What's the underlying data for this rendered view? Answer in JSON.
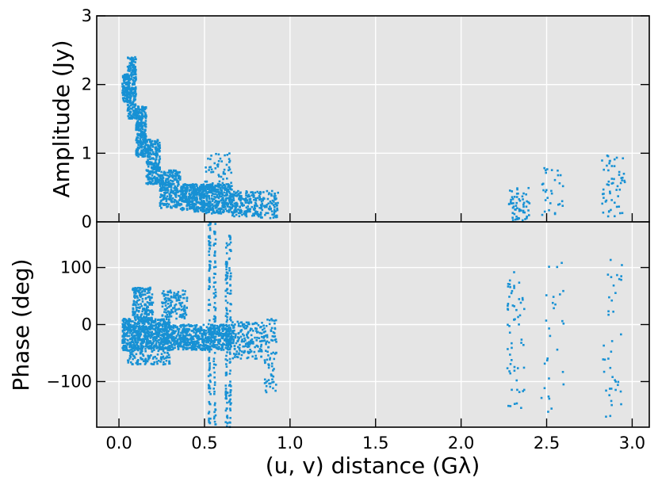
{
  "chart_data": [
    {
      "type": "scatter",
      "panel": "top",
      "ylabel": "Amplitude (Jy)",
      "xlim": [
        -0.13,
        3.1
      ],
      "ylim": [
        0,
        3
      ],
      "yticks": [
        "0",
        "1",
        "2",
        "3"
      ],
      "grid": true,
      "background": "#e5e5e5",
      "marker_color": "#1791d4",
      "series": [
        {
          "clusters": [
            {
              "x": [
                0.02,
                0.06
              ],
              "y": [
                1.75,
                2.15
              ],
              "n": 140
            },
            {
              "x": [
                0.05,
                0.1
              ],
              "y": [
                1.5,
                2.4
              ],
              "n": 220
            },
            {
              "x": [
                0.1,
                0.16
              ],
              "y": [
                0.95,
                1.7
              ],
              "n": 260
            },
            {
              "x": [
                0.16,
                0.24
              ],
              "y": [
                0.55,
                1.2
              ],
              "n": 260
            },
            {
              "x": [
                0.24,
                0.36
              ],
              "y": [
                0.2,
                0.75
              ],
              "n": 260
            },
            {
              "x": [
                0.36,
                0.5
              ],
              "y": [
                0.15,
                0.55
              ],
              "n": 320
            },
            {
              "x": [
                0.5,
                0.66
              ],
              "y": [
                0.12,
                0.55
              ],
              "n": 320
            },
            {
              "x": [
                0.5,
                0.66
              ],
              "y": [
                0.4,
                1.0
              ],
              "n": 60
            },
            {
              "x": [
                0.66,
                0.8
              ],
              "y": [
                0.08,
                0.45
              ],
              "n": 160
            },
            {
              "x": [
                0.8,
                0.93
              ],
              "y": [
                0.05,
                0.45
              ],
              "n": 110
            },
            {
              "x": [
                2.28,
                2.4
              ],
              "y": [
                0.02,
                0.5
              ],
              "n": 60
            },
            {
              "x": [
                2.47,
                2.6
              ],
              "y": [
                0.1,
                0.85
              ],
              "n": 30
            },
            {
              "x": [
                2.82,
                2.96
              ],
              "y": [
                0.05,
                0.98
              ],
              "n": 55
            }
          ]
        }
      ]
    },
    {
      "type": "scatter",
      "panel": "bottom",
      "xlabel": "(u, v) distance (Gλ)",
      "ylabel": "Phase (deg)",
      "xlim": [
        -0.13,
        3.1
      ],
      "ylim": [
        -180,
        180
      ],
      "xticks": [
        "0.0",
        "0.5",
        "1.0",
        "1.5",
        "2.0",
        "2.5",
        "3.0"
      ],
      "yticks": [
        "−100",
        "0",
        "100"
      ],
      "grid": true,
      "background": "#e5e5e5",
      "marker_color": "#1791d4",
      "series": [
        {
          "clusters": [
            {
              "x": [
                0.02,
                0.3
              ],
              "y": [
                -45,
                10
              ],
              "n": 700
            },
            {
              "x": [
                0.08,
                0.2
              ],
              "y": [
                10,
                65
              ],
              "n": 180
            },
            {
              "x": [
                0.25,
                0.4
              ],
              "y": [
                10,
                60
              ],
              "n": 130
            },
            {
              "x": [
                0.3,
                0.66
              ],
              "y": [
                -45,
                0
              ],
              "n": 600
            },
            {
              "x": [
                0.66,
                0.85
              ],
              "y": [
                -60,
                5
              ],
              "n": 180
            },
            {
              "x": [
                0.85,
                0.92
              ],
              "y": [
                -120,
                10
              ],
              "n": 80
            },
            {
              "x": [
                0.05,
                0.3
              ],
              "y": [
                -70,
                -45
              ],
              "n": 100
            },
            {
              "x": [
                2.27,
                2.37
              ],
              "y": [
                -150,
                95
              ],
              "n": 60
            },
            {
              "x": [
                2.47,
                2.6
              ],
              "y": [
                -160,
                115
              ],
              "n": 28
            },
            {
              "x": [
                2.82,
                2.95
              ],
              "y": [
                -165,
                120
              ],
              "n": 40
            }
          ],
          "streaks": [
            {
              "x": 0.53,
              "y": [
                -180,
                180
              ],
              "n": 90
            },
            {
              "x": 0.56,
              "y": [
                -180,
                180
              ],
              "n": 70
            },
            {
              "x": 0.63,
              "y": [
                -180,
                150
              ],
              "n": 80
            },
            {
              "x": 0.65,
              "y": [
                -180,
                160
              ],
              "n": 70
            }
          ]
        }
      ]
    }
  ]
}
